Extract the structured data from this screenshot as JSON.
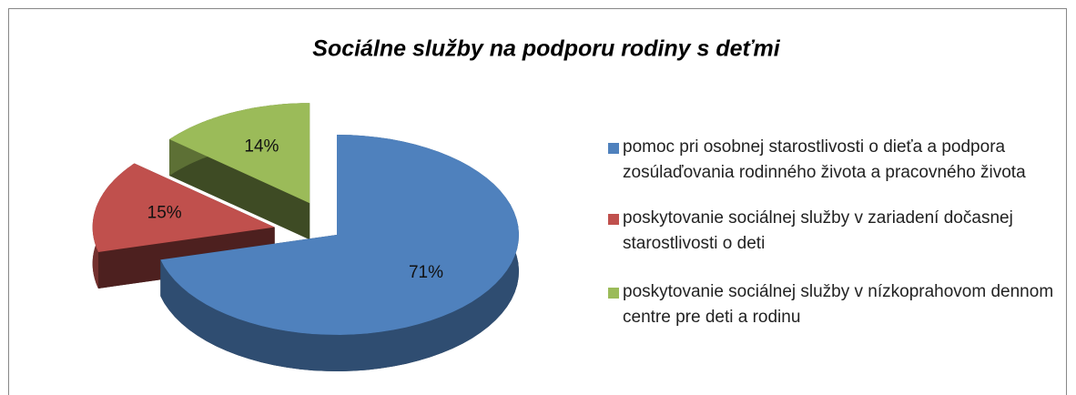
{
  "chart_data": {
    "type": "pie",
    "title": "Sociálne služby na podporu rodiny s deťmi",
    "categories": [
      "pomoc pri osobnej starostlivosti o dieťa a podpora zosúlaďovania rodinného života a pracovného života",
      "poskytovanie sociálnej služby v zariadení dočasnej starostlivosti o deti",
      "poskytovanie sociálnej služby v nízkoprahovom dennom centre pre deti a rodinu"
    ],
    "values": [
      71,
      15,
      14
    ],
    "value_labels": [
      "71%",
      "15%",
      "14%"
    ],
    "colors": [
      "#4f81bd",
      "#c0504d",
      "#9bbb59"
    ],
    "legend": "right"
  }
}
